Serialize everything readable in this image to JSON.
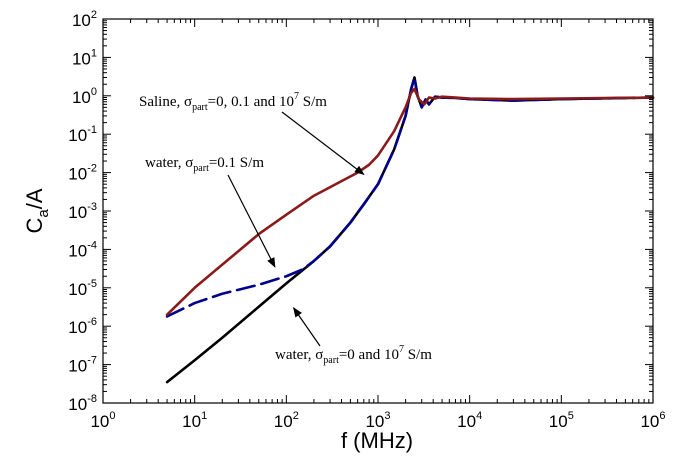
{
  "chart_data": {
    "type": "line",
    "title": "",
    "xlabel": "f (MHz)",
    "ylabel": {
      "main": "C",
      "sub": "a",
      "rest": "/A"
    },
    "x_scale": "log",
    "y_scale": "log",
    "xlim": [
      1,
      1000000
    ],
    "ylim": [
      1e-08,
      100
    ],
    "grid": false,
    "x_ticks": [
      {
        "value": 1,
        "base": "10",
        "exp": "0"
      },
      {
        "value": 10,
        "base": "10",
        "exp": "1"
      },
      {
        "value": 100,
        "base": "10",
        "exp": "2"
      },
      {
        "value": 1000,
        "base": "10",
        "exp": "3"
      },
      {
        "value": 10000,
        "base": "10",
        "exp": "4"
      },
      {
        "value": 100000,
        "base": "10",
        "exp": "5"
      },
      {
        "value": 1000000,
        "base": "10",
        "exp": "6"
      }
    ],
    "y_ticks": [
      {
        "value": 1e-08,
        "base": "10",
        "exp": "-8"
      },
      {
        "value": 1e-07,
        "base": "10",
        "exp": "-7"
      },
      {
        "value": 1e-06,
        "base": "10",
        "exp": "-6"
      },
      {
        "value": 1e-05,
        "base": "10",
        "exp": "-5"
      },
      {
        "value": 0.0001,
        "base": "10",
        "exp": "-4"
      },
      {
        "value": 0.001,
        "base": "10",
        "exp": "-3"
      },
      {
        "value": 0.01,
        "base": "10",
        "exp": "-2"
      },
      {
        "value": 0.1,
        "base": "10",
        "exp": "-1"
      },
      {
        "value": 1,
        "base": "10",
        "exp": "0"
      },
      {
        "value": 10,
        "base": "10",
        "exp": "1"
      },
      {
        "value": 100,
        "base": "10",
        "exp": "2"
      }
    ],
    "series": [
      {
        "key": "saline",
        "color": "#8b1a1a",
        "dash": "solid",
        "x": [
          5,
          10,
          20,
          50,
          100,
          200,
          400,
          600,
          800,
          1000,
          1500,
          2000,
          2300,
          2500,
          2800,
          3200,
          3600,
          4200,
          5000,
          7000,
          10000,
          30000,
          100000,
          1000000
        ],
        "y": [
          2e-06,
          1e-05,
          4e-05,
          0.00025,
          0.0008,
          0.0025,
          0.006,
          0.01,
          0.016,
          0.028,
          0.12,
          0.5,
          1.2,
          1.5,
          0.8,
          0.6,
          0.9,
          0.85,
          0.95,
          0.9,
          0.85,
          0.82,
          0.85,
          0.9
        ]
      },
      {
        "key": "water-0.1",
        "color": "#00008b",
        "dash": "dashed",
        "x": [
          5,
          10,
          20,
          50,
          100,
          150,
          200,
          300,
          500,
          700,
          1000,
          1500,
          2000,
          2300,
          2500,
          2700,
          3000,
          3300,
          3600,
          4200,
          5000,
          7000,
          10000,
          30000,
          100000,
          1000000
        ],
        "y": [
          1.8e-06,
          4e-06,
          7e-06,
          1.2e-05,
          2e-05,
          3e-05,
          5e-05,
          0.00012,
          0.0005,
          0.0015,
          0.005,
          0.04,
          0.3,
          1.5,
          3,
          1,
          0.5,
          0.8,
          0.6,
          0.95,
          0.9,
          0.88,
          0.82,
          0.75,
          0.82,
          0.9
        ]
      },
      {
        "key": "water-0-1e7",
        "color": "#000000",
        "dash": "solid",
        "x": [
          5,
          10,
          20,
          50,
          100,
          200,
          300,
          500,
          700,
          1000,
          1500,
          2000,
          2300,
          2500,
          2700,
          3000,
          3300,
          3600,
          4200,
          5000,
          7000,
          10000,
          30000,
          100000,
          1000000
        ],
        "y": [
          3.5e-08,
          1.3e-07,
          5e-07,
          3.2e-06,
          1.3e-05,
          5e-05,
          0.00012,
          0.0005,
          0.0015,
          0.005,
          0.04,
          0.3,
          1.5,
          3,
          1,
          0.5,
          0.8,
          0.6,
          0.95,
          0.9,
          0.88,
          0.82,
          0.75,
          0.82,
          0.9
        ]
      }
    ],
    "annotations": [
      {
        "key": "saline",
        "pre": "Saline, σ",
        "sub": "part",
        "mid": "=0, 0.1 and 10",
        "sup": "7",
        "post": " S/m",
        "arrow_to": {
          "x": 700,
          "y": 0.009
        }
      },
      {
        "key": "water-0.1",
        "pre": "water, σ",
        "sub": "part",
        "mid": "=0.1 S/m",
        "sup": "",
        "post": "",
        "arrow_to": {
          "x": 75,
          "y": 3.5e-05
        }
      },
      {
        "key": "water-0-1e7",
        "pre": "water, σ",
        "sub": "part",
        "mid": "=0 and 10",
        "sup": "7",
        "post": " S/m",
        "arrow_to": {
          "x": 120,
          "y": 3e-06
        }
      }
    ]
  }
}
